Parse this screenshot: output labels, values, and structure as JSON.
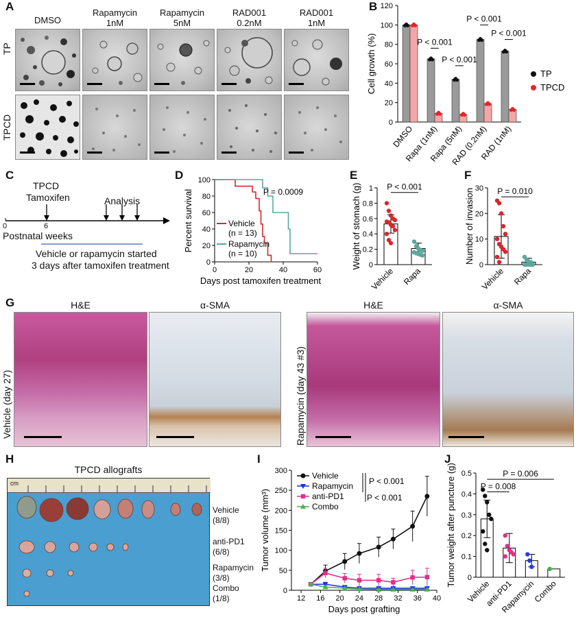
{
  "panels": {
    "A": "A",
    "B": "B",
    "C": "C",
    "D": "D",
    "E": "E",
    "F": "F",
    "G": "G",
    "H": "H",
    "I": "I",
    "J": "J"
  },
  "panelA": {
    "columns": [
      "DMSO",
      "Rapamycin\n1nM",
      "Rapamycin\n5nM",
      "RAD001\n0.2nM",
      "RAD001\n1nM"
    ],
    "col_line1": [
      "DMSO",
      "Rapamycin",
      "Rapamycin",
      "RAD001",
      "RAD001"
    ],
    "col_line2": [
      "",
      "1nM",
      "5nM",
      "0.2nM",
      "1nM"
    ],
    "rows": [
      "TP",
      "TPCD"
    ]
  },
  "panelC": {
    "tpcd": "TPCD",
    "tamoxifen": "Tamoxifen",
    "analysis": "Analysis",
    "tick0": "0",
    "tick6": "6",
    "axis": "Postnatal weeks",
    "note1": "Vehicle or rapamycin started",
    "note2": "3 days after tamoxifen treatment"
  },
  "panelG": {
    "he": "H&E",
    "sma": "α-SMA",
    "left_label": "Vehicle (day 27)",
    "right_label": "Rapamycin (day 43 #3)"
  },
  "panelH": {
    "title": "TPCD allografts",
    "ruler_unit": "cm",
    "groups": [
      {
        "name": "Vehicle",
        "count": "(8/8)"
      },
      {
        "name": "anti-PD1",
        "count": "(6/8)"
      },
      {
        "name": "Rapamycin",
        "count": "(3/8)"
      },
      {
        "name": "Combo",
        "count": "(1/8)"
      }
    ]
  },
  "colors": {
    "tp": "#111111",
    "tpcd": "#e0262b",
    "tp_bar": "#9a9a9a",
    "tpcd_bar": "#f4a6a6",
    "vehicle": "#d6282e",
    "rapamycin": "#5aa89a",
    "anti_pd1": "#e0308a",
    "combo": "#47b24a",
    "rapa_blue": "#1f2fe6"
  },
  "chart_data": [
    {
      "id": "B",
      "type": "bar",
      "ylabel": "Cell growth (%)",
      "ylim": [
        0,
        120
      ],
      "yticks": [
        0,
        20,
        40,
        60,
        80,
        100,
        120
      ],
      "categories": [
        "DMSO",
        "Rapa (1nM)",
        "Rapa (5nM)",
        "RAD (0.2nM)",
        "RAD (1nM)"
      ],
      "series": [
        {
          "name": "TP",
          "values": [
            100,
            65,
            44,
            85,
            73
          ]
        },
        {
          "name": "TPCD",
          "values": [
            100,
            9,
            8,
            19,
            13
          ]
        }
      ],
      "legend_position": "right",
      "annotations": [
        "P < 0.001",
        "P < 0.001",
        "P < 0.001",
        "P < 0.001"
      ]
    },
    {
      "id": "D",
      "type": "line",
      "xlabel": "Days post tamoxifen treatment",
      "ylabel": "Percent survival",
      "xlim": [
        0,
        60
      ],
      "ylim": [
        0,
        100
      ],
      "xticks": [
        0,
        20,
        40,
        60
      ],
      "yticks": [
        0,
        20,
        40,
        60,
        80,
        100
      ],
      "series": [
        {
          "name": "Vehicle",
          "n": "(n = 13)",
          "steps": [
            [
              0,
              100
            ],
            [
              12,
              100
            ],
            [
              12,
              92
            ],
            [
              22,
              92
            ],
            [
              22,
              85
            ],
            [
              24,
              85
            ],
            [
              24,
              77
            ],
            [
              26,
              77
            ],
            [
              26,
              62
            ],
            [
              27,
              62
            ],
            [
              27,
              46
            ],
            [
              28,
              46
            ],
            [
              28,
              31
            ],
            [
              29,
              31
            ],
            [
              29,
              23
            ],
            [
              31,
              23
            ],
            [
              31,
              8
            ],
            [
              33,
              8
            ],
            [
              33,
              0
            ]
          ]
        },
        {
          "name": "Rapamycin",
          "n": "(n = 10)",
          "steps": [
            [
              0,
              100
            ],
            [
              28,
              100
            ],
            [
              28,
              90
            ],
            [
              31,
              90
            ],
            [
              31,
              80
            ],
            [
              34,
              80
            ],
            [
              34,
              60
            ],
            [
              43,
              60
            ],
            [
              43,
              40
            ],
            [
              44,
              40
            ],
            [
              44,
              10
            ],
            [
              60,
              10
            ]
          ]
        }
      ],
      "annotation": "P = 0.0009"
    },
    {
      "id": "E",
      "type": "bar",
      "ylabel": "Weight of stomach (g)",
      "ylim": [
        0,
        1.0
      ],
      "yticks": [
        0,
        0.2,
        0.4,
        0.6,
        0.8,
        1.0
      ],
      "categories": [
        "Vehicle",
        "Rapa"
      ],
      "values": [
        0.53,
        0.21
      ],
      "errors": [
        0.12,
        0.07
      ],
      "points": [
        [
          0.8,
          0.7,
          0.64,
          0.6,
          0.58,
          0.56,
          0.55,
          0.52,
          0.5,
          0.45,
          0.4,
          0.32,
          0.28
        ],
        [
          0.3,
          0.24,
          0.21,
          0.19,
          0.18,
          0.16,
          0.15,
          0.14,
          0.13,
          0.12
        ]
      ],
      "annotation": "P < 0.001"
    },
    {
      "id": "F",
      "type": "bar",
      "ylabel": "Number of invasion",
      "ylim": [
        0,
        30
      ],
      "yticks": [
        0,
        10,
        20,
        30
      ],
      "categories": [
        "Vehicle",
        "Rapa"
      ],
      "values": [
        11,
        1
      ],
      "errors": [
        8.5,
        1.5
      ],
      "points": [
        [
          25,
          24,
          20,
          15,
          12,
          10,
          8,
          7,
          6,
          5,
          3,
          1
        ],
        [
          3,
          2,
          1,
          1,
          0,
          0,
          0,
          0,
          0,
          0
        ]
      ],
      "annotation": "P = 0.010"
    },
    {
      "id": "I",
      "type": "line",
      "xlabel": "Days post grafting",
      "ylabel": "Tumor volume (mm³)",
      "xlim": [
        10,
        40
      ],
      "ylim": [
        0,
        300
      ],
      "xticks": [
        12,
        16,
        20,
        24,
        28,
        32,
        36,
        40
      ],
      "yticks": [
        0,
        50,
        100,
        150,
        200,
        250,
        300
      ],
      "x": [
        14,
        17,
        21,
        24,
        28,
        31,
        35,
        38
      ],
      "series": [
        {
          "name": "Vehicle",
          "values": [
            15,
            48,
            72,
            92,
            108,
            128,
            160,
            235
          ],
          "errors": [
            3,
            15,
            20,
            25,
            25,
            25,
            38,
            50
          ]
        },
        {
          "name": "Rapamycin",
          "values": [
            15,
            15,
            8,
            5,
            5,
            5,
            5,
            5
          ],
          "errors": [
            4,
            5,
            4,
            3,
            3,
            3,
            3,
            3
          ]
        },
        {
          "name": "anti-PD1",
          "values": [
            15,
            43,
            30,
            25,
            25,
            20,
            32,
            33
          ],
          "errors": [
            4,
            12,
            12,
            15,
            15,
            10,
            18,
            22
          ]
        },
        {
          "name": "Combo",
          "values": [
            15,
            8,
            5,
            3,
            2,
            2,
            2,
            2
          ],
          "errors": [
            3,
            3,
            2,
            2,
            1,
            1,
            1,
            1
          ]
        }
      ],
      "annotations": [
        "P < 0.001",
        "P < 0.001"
      ]
    },
    {
      "id": "J",
      "type": "bar",
      "ylabel": "Tumor weight after puncture (g)",
      "ylim": [
        0,
        0.5
      ],
      "yticks": [
        0,
        0.1,
        0.2,
        0.3,
        0.4,
        0.5
      ],
      "categories": [
        "Vehicle",
        "anti-PD1",
        "Rapamycin",
        "Combo"
      ],
      "values": [
        0.28,
        0.14,
        0.08,
        0.04
      ],
      "errors": [
        0.09,
        0.07,
        0.03,
        0
      ],
      "points": [
        [
          0.42,
          0.39,
          0.36,
          0.3,
          0.28,
          0.22,
          0.16,
          0.13
        ],
        [
          0.2,
          0.15,
          0.13,
          0.12,
          0.11,
          0.1
        ],
        [
          0.11,
          0.08,
          0.05
        ],
        [
          0.04
        ]
      ],
      "annotations": [
        "P = 0.006",
        "P = 0.008"
      ]
    }
  ]
}
